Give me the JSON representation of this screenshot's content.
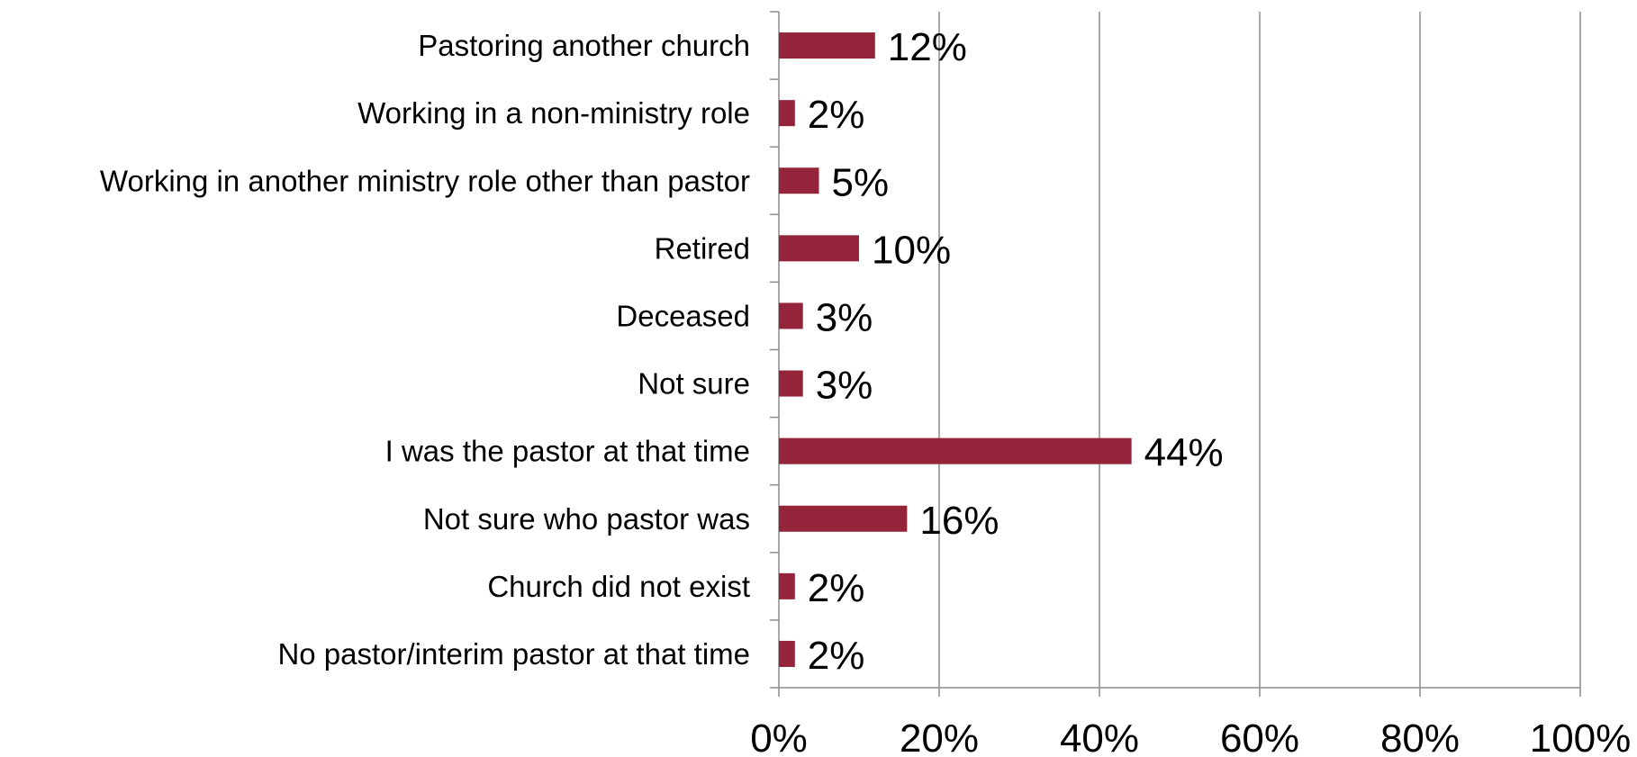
{
  "chart_data": {
    "type": "bar",
    "orientation": "horizontal",
    "title": "",
    "xlabel": "",
    "ylabel": "",
    "categories": [
      "Pastoring another church",
      "Working in a non-ministry role",
      "Working in another ministry role other than pastor",
      "Retired",
      "Deceased",
      "Not sure",
      "I was the pastor at that time",
      "Not sure who pastor was",
      "Church did not exist",
      "No pastor/interim pastor at that time"
    ],
    "values": [
      12,
      2,
      5,
      10,
      3,
      3,
      44,
      16,
      2,
      2
    ],
    "value_labels": [
      "12%",
      "2%",
      "5%",
      "10%",
      "3%",
      "3%",
      "44%",
      "16%",
      "2%",
      "2%"
    ],
    "xlim": [
      0,
      100
    ],
    "x_ticks": [
      0,
      20,
      40,
      60,
      80,
      100
    ],
    "x_tick_labels": [
      "0%",
      "20%",
      "40%",
      "60%",
      "80%",
      "100%"
    ],
    "grid": "vertical",
    "legend": "none",
    "bar_color": "#932439",
    "grid_color": "#8c8c8c",
    "axis_color": "#8c8c8c"
  }
}
